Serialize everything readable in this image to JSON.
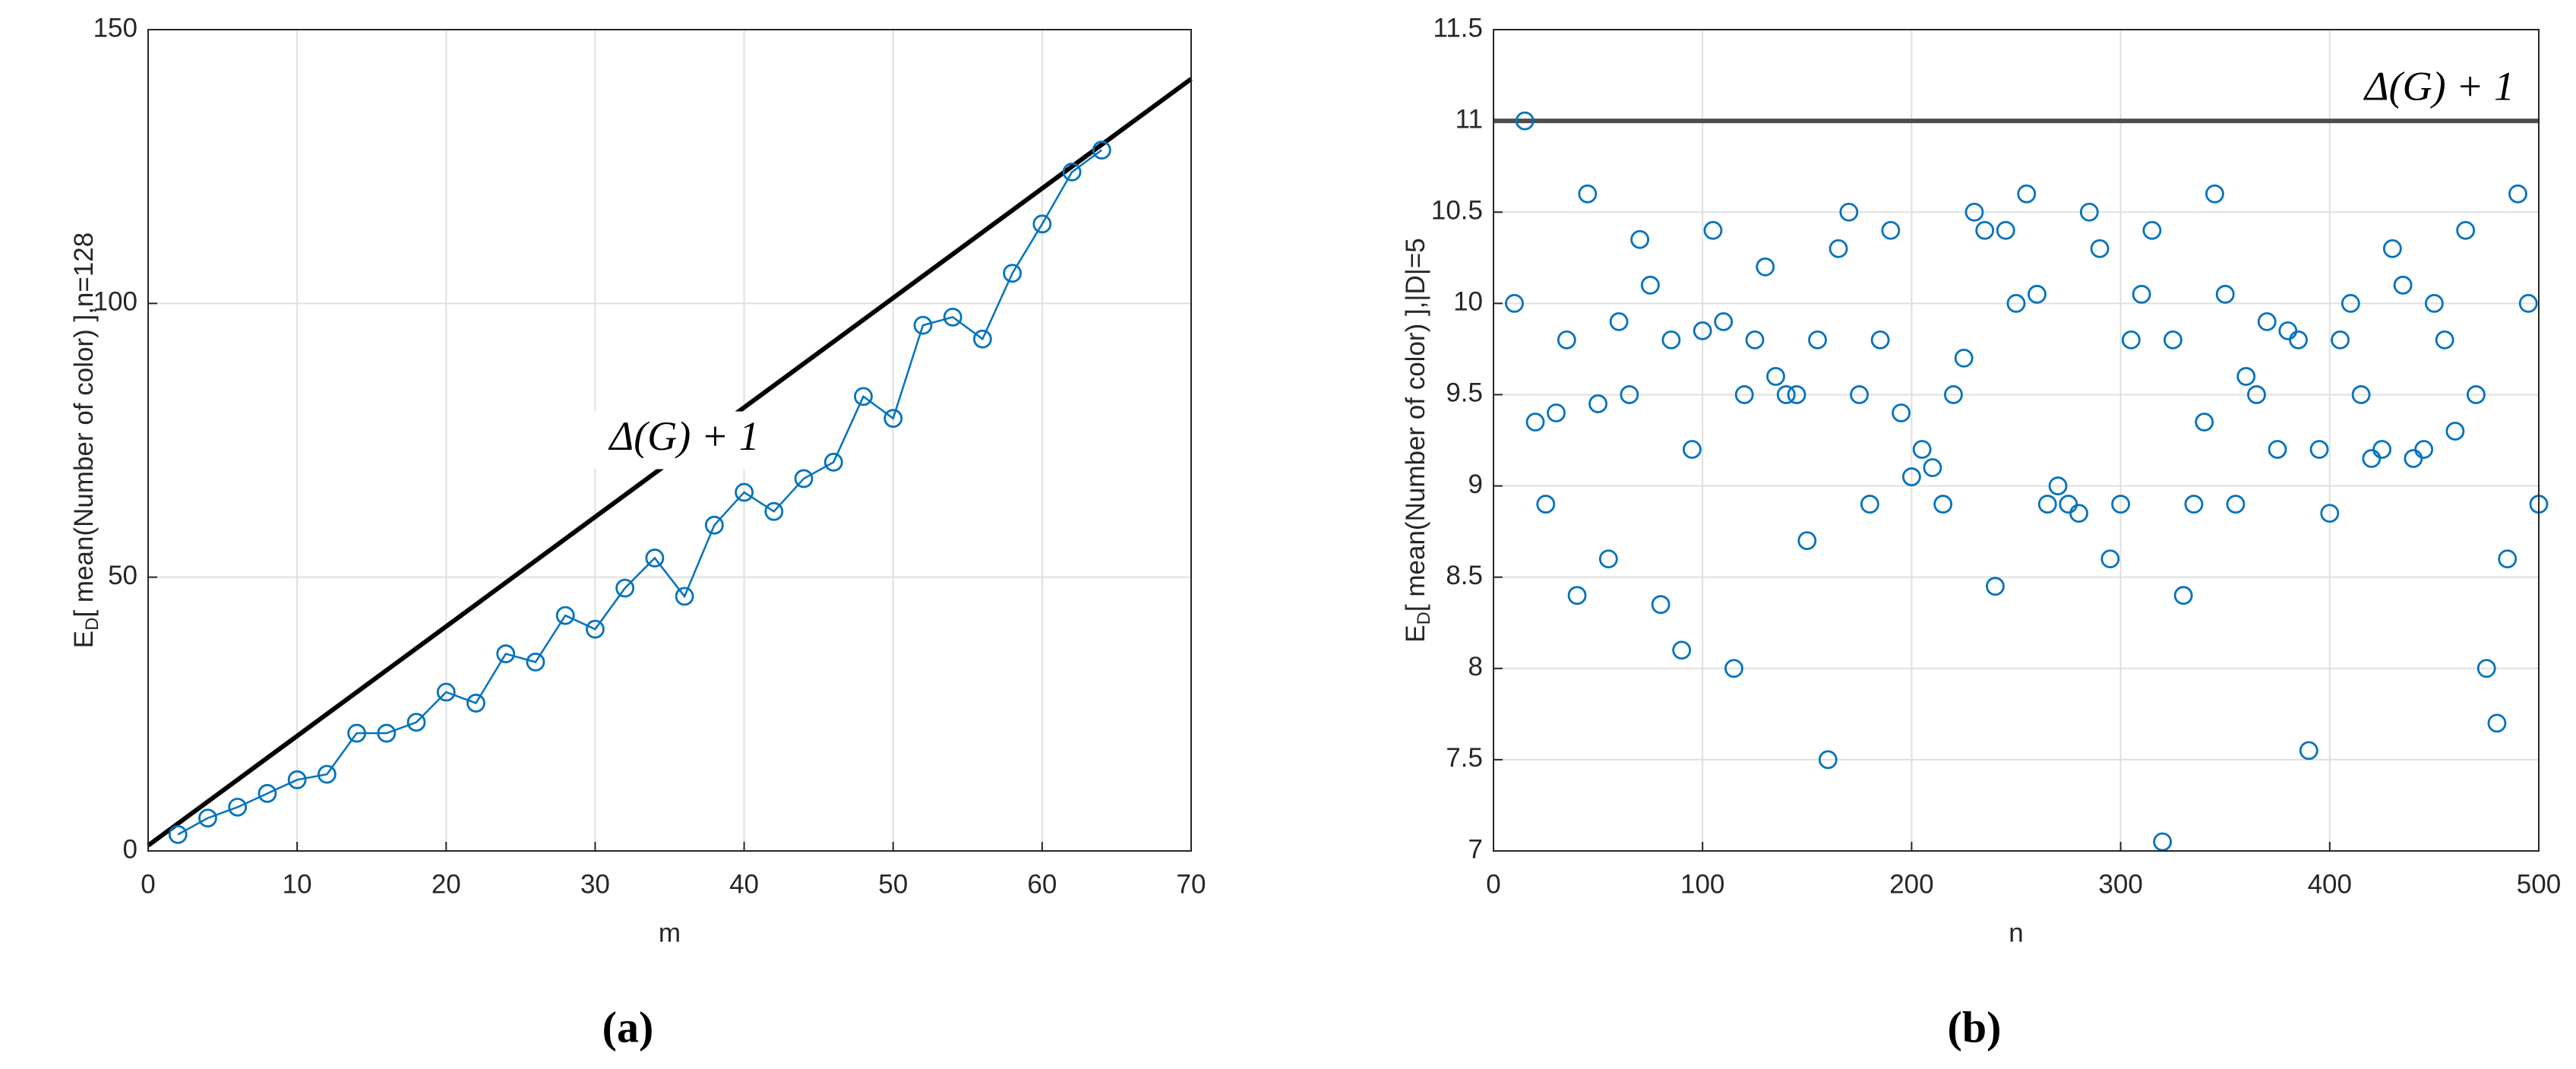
{
  "chart_data": [
    {
      "type": "line",
      "caption": "(a)",
      "xlabel": "m",
      "ylabel": {
        "base": "E",
        "sub": "D",
        "rest": "[ mean(Number of color) ],n=128"
      },
      "x": [
        2,
        4,
        6,
        8,
        10,
        12,
        14,
        16,
        18,
        20,
        22,
        24,
        26,
        28,
        30,
        32,
        34,
        36,
        38,
        40,
        42,
        44,
        46,
        48,
        50,
        52,
        54,
        56,
        58,
        60,
        62,
        64
      ],
      "series": [
        {
          "color": "#0072bd",
          "values": [
            3,
            6,
            8,
            10.5,
            13,
            14,
            21.5,
            21.5,
            23.5,
            29,
            27,
            36,
            34.5,
            43,
            40.5,
            48,
            53.5,
            46.5,
            59.5,
            65.5,
            62,
            68,
            71,
            83,
            79,
            96,
            97.5,
            93.5,
            105.5,
            114.5,
            124,
            128
          ]
        }
      ],
      "reference": {
        "label": "Δ(G) + 1",
        "x": [
          0,
          70
        ],
        "values": [
          1,
          141
        ],
        "color": "#000000"
      },
      "xlim": [
        0,
        70
      ],
      "xticks": [
        0,
        10,
        20,
        30,
        40,
        50,
        60,
        70
      ],
      "ylim": [
        0,
        150
      ],
      "yticks": [
        0,
        50,
        100,
        150
      ],
      "grid": true
    },
    {
      "type": "scatter",
      "caption": "(b)",
      "xlabel": "n",
      "ylabel": {
        "base": "E",
        "sub": "D",
        "rest": "[ mean(Number of color) ],|D|=5"
      },
      "x": [
        10,
        15,
        20,
        25,
        30,
        35,
        40,
        45,
        50,
        55,
        60,
        65,
        70,
        75,
        80,
        85,
        90,
        95,
        100,
        105,
        110,
        115,
        120,
        125,
        130,
        135,
        140,
        145,
        150,
        155,
        160,
        165,
        170,
        175,
        180,
        185,
        190,
        195,
        200,
        205,
        210,
        215,
        220,
        225,
        230,
        235,
        240,
        245,
        250,
        255,
        260,
        265,
        270,
        275,
        280,
        285,
        290,
        295,
        300,
        305,
        310,
        315,
        320,
        325,
        330,
        335,
        340,
        345,
        350,
        355,
        360,
        365,
        370,
        375,
        380,
        385,
        390,
        395,
        400,
        405,
        410,
        415,
        420,
        425,
        430,
        435,
        440,
        445,
        450,
        455,
        460,
        465,
        470,
        475,
        480,
        485,
        490,
        495,
        500
      ],
      "series": [
        {
          "color": "#0072bd",
          "values": [
            10,
            11,
            9.35,
            8.9,
            9.4,
            9.8,
            8.4,
            10.6,
            9.45,
            8.6,
            9.9,
            9.5,
            10.35,
            10.1,
            8.35,
            9.8,
            8.1,
            9.2,
            9.85,
            10.4,
            9.9,
            8,
            9.5,
            9.8,
            10.2,
            9.6,
            9.5,
            9.5,
            8.7,
            9.8,
            7.5,
            10.3,
            10.5,
            9.5,
            8.9,
            9.8,
            10.4,
            9.4,
            9.05,
            9.2,
            9.1,
            8.9,
            9.5,
            9.7,
            10.5,
            10.4,
            8.45,
            10.4,
            10,
            10.6,
            10.05,
            8.9,
            9,
            8.9,
            8.85,
            10.5,
            10.3,
            8.6,
            8.9,
            9.8,
            10.05,
            10.4,
            7.05,
            9.8,
            8.4,
            8.9,
            9.35,
            10.6,
            10.05,
            8.9,
            9.6,
            9.5,
            9.9,
            9.2,
            9.85,
            9.8,
            7.55,
            9.2,
            8.85,
            9.8,
            10,
            9.5,
            9.15,
            9.2,
            10.3,
            10.1,
            9.15,
            9.2,
            10,
            9.8,
            9.3,
            10.4,
            9.5,
            8,
            7.7,
            8.6,
            10.6,
            10,
            8.9
          ]
        }
      ],
      "reference": {
        "label": "Δ(G) + 1",
        "x": [
          0,
          500
        ],
        "values": [
          11,
          11
        ],
        "color": "#4d4d4d"
      },
      "xlim": [
        0,
        500
      ],
      "xticks": [
        0,
        100,
        200,
        300,
        400,
        500
      ],
      "ylim": [
        7,
        11.5
      ],
      "yticks": [
        7,
        7.5,
        8,
        8.5,
        9,
        9.5,
        10,
        10.5,
        11,
        11.5
      ],
      "grid": true
    }
  ]
}
